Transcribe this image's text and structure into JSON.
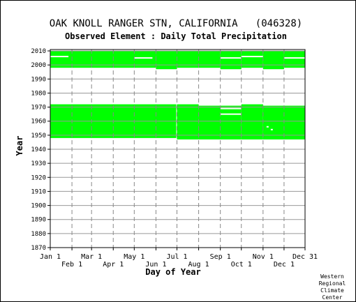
{
  "chart_data": {
    "type": "heatmap",
    "title": "OAK KNOLL RANGER STN, CALIFORNIA   (046328)",
    "subtitle": "Observed Element : Daily Total Precipitation",
    "xlabel": "Day of Year",
    "ylabel": "Year",
    "x_range_days": [
      1,
      365
    ],
    "ylim": [
      1870,
      2011
    ],
    "y_ticks": [
      1870,
      1880,
      1890,
      1900,
      1910,
      1920,
      1930,
      1940,
      1950,
      1960,
      1970,
      1980,
      1990,
      2000,
      2010
    ],
    "x_ticks_top": [
      {
        "label": "Jan 1",
        "day": 1
      },
      {
        "label": "Mar 1",
        "day": 60
      },
      {
        "label": "May 1",
        "day": 121
      },
      {
        "label": "Jul 1",
        "day": 182
      },
      {
        "label": "Sep 1",
        "day": 244
      },
      {
        "label": "Nov 1",
        "day": 305
      },
      {
        "label": "Dec 31",
        "day": 365
      }
    ],
    "x_ticks_bottom": [
      {
        "label": "Feb 1",
        "day": 32
      },
      {
        "label": "Apr 1",
        "day": 91
      },
      {
        "label": "Jun 1",
        "day": 152
      },
      {
        "label": "Aug 1",
        "day": 213
      },
      {
        "label": "Oct 1",
        "day": 274
      },
      {
        "label": "Dec 1",
        "day": 335
      }
    ],
    "grid": true,
    "data_color": "#00ff00",
    "coverage": [
      {
        "period": "early",
        "day_start": 1,
        "day_end": 181,
        "year_start": 1948,
        "year_end": 1972
      },
      {
        "period": "early",
        "day_start": 182,
        "day_end": 213,
        "year_start": 1947,
        "year_end": 1972
      },
      {
        "period": "early",
        "day_start": 213,
        "day_end": 274,
        "year_start": 1947,
        "year_end": 1971
      },
      {
        "period": "early",
        "day_start": 274,
        "day_end": 305,
        "year_start": 1947,
        "year_end": 1972
      },
      {
        "period": "early",
        "day_start": 305,
        "day_end": 365,
        "year_start": 1947,
        "year_end": 1971
      },
      {
        "period": "late",
        "day_start": 1,
        "day_end": 152,
        "year_start": 1998,
        "year_end": 2010
      },
      {
        "period": "late",
        "day_start": 152,
        "day_end": 182,
        "year_start": 1997,
        "year_end": 2010
      },
      {
        "period": "late",
        "day_start": 182,
        "day_end": 244,
        "year_start": 1998,
        "year_end": 2010
      },
      {
        "period": "late",
        "day_start": 244,
        "day_end": 274,
        "year_start": 1997,
        "year_end": 2010
      },
      {
        "period": "late",
        "day_start": 274,
        "day_end": 305,
        "year_start": 1998,
        "year_end": 2010
      },
      {
        "period": "late",
        "day_start": 305,
        "day_end": 335,
        "year_start": 1997,
        "year_end": 2010
      },
      {
        "period": "late",
        "day_start": 335,
        "day_end": 365,
        "year_start": 1998,
        "year_end": 2010
      }
    ],
    "gaps": [
      {
        "day_start": 1,
        "day_end": 27,
        "year": 2006
      },
      {
        "day_start": 121,
        "day_end": 147,
        "year": 2005
      },
      {
        "day_start": 244,
        "day_end": 274,
        "year": 2005
      },
      {
        "day_start": 274,
        "day_end": 305,
        "year": 2006
      },
      {
        "day_start": 335,
        "day_end": 365,
        "year": 2005
      },
      {
        "day_start": 244,
        "day_end": 274,
        "year": 1969
      },
      {
        "day_start": 244,
        "day_end": 274,
        "year": 1965
      },
      {
        "day_start": 310,
        "day_end": 313,
        "year": 1956
      },
      {
        "day_start": 316,
        "day_end": 319,
        "year": 1954
      }
    ]
  },
  "credit": {
    "line1": "Western",
    "line2": "Regional",
    "line3": "Climate",
    "line4": "Center"
  }
}
